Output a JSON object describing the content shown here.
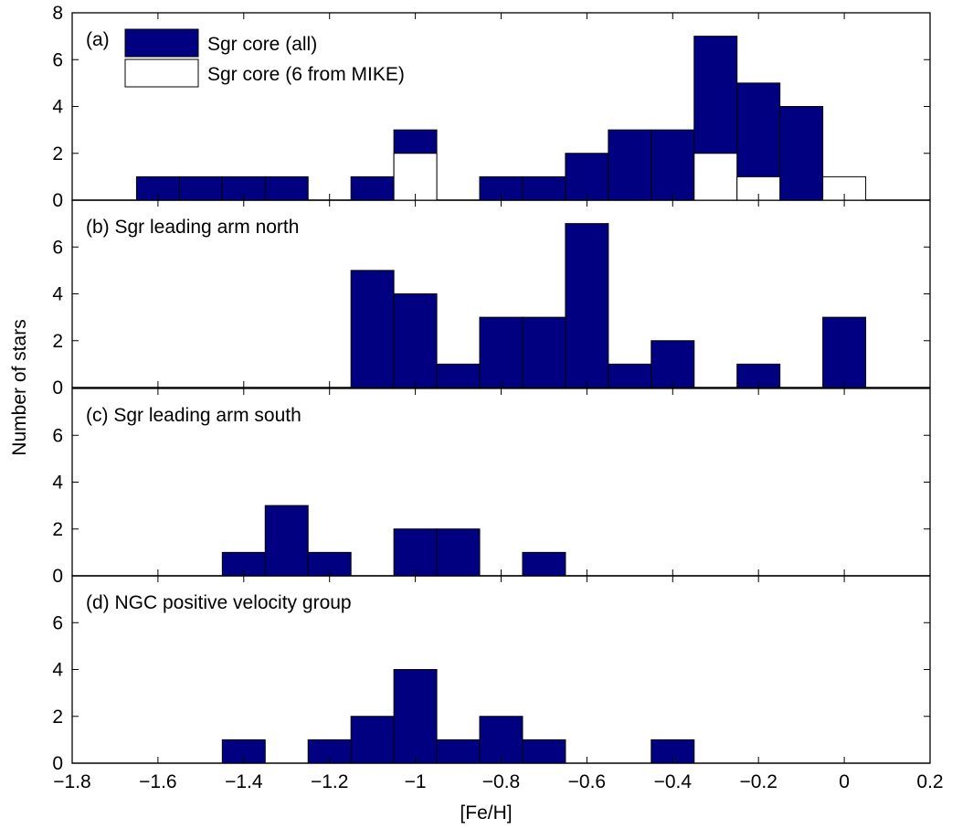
{
  "chart_data": {
    "type": "bar",
    "xlabel": "[Fe/H]",
    "ylabel": "Number of stars",
    "xlim": [
      -1.8,
      0.2
    ],
    "x_ticks": [
      -1.8,
      -1.6,
      -1.4,
      -1.2,
      -1,
      -0.8,
      -0.6,
      -0.4,
      -0.2,
      0,
      0.2
    ],
    "x_tick_labels": [
      "−1.8",
      "−1.6",
      "−1.4",
      "−1.2",
      "−1",
      "−0.8",
      "−0.6",
      "−0.4",
      "−0.2",
      "0",
      "0.2"
    ],
    "bin_width": 0.1,
    "grid": false,
    "colors": {
      "filled": "#000080",
      "open": "#ffffff",
      "edge": "#000000"
    },
    "panels": [
      {
        "label": "(a)",
        "ylim": [
          0,
          8
        ],
        "y_ticks": [
          0,
          2,
          4,
          6,
          8
        ],
        "y_tick_labels": [
          "0",
          "2",
          "4",
          "6",
          "8"
        ],
        "legend": {
          "placement": "top-left",
          "entries": [
            "Sgr core (all)",
            "Sgr core (6 from MIKE)"
          ]
        },
        "series": [
          {
            "name": "Sgr core (all)",
            "style": "filled",
            "bin_centers": [
              -1.6,
              -1.5,
              -1.4,
              -1.3,
              -1.1,
              -1.0,
              -0.8,
              -0.7,
              -0.6,
              -0.5,
              -0.4,
              -0.3,
              -0.2,
              -0.1
            ],
            "values": [
              1,
              1,
              1,
              1,
              1,
              3,
              1,
              1,
              2,
              3,
              3,
              7,
              5,
              4
            ]
          },
          {
            "name": "Sgr core (6 from MIKE)",
            "style": "open",
            "bin_centers": [
              -1.0,
              -0.3,
              -0.2,
              0.0
            ],
            "values": [
              2,
              2,
              1,
              1
            ]
          }
        ]
      },
      {
        "label": "(b) Sgr leading arm north",
        "ylim": [
          0,
          8
        ],
        "y_ticks": [
          0,
          2,
          4,
          6
        ],
        "y_tick_labels": [
          "0",
          "2",
          "4",
          "6"
        ],
        "series": [
          {
            "style": "filled",
            "bin_centers": [
              -1.1,
              -1.0,
              -0.9,
              -0.8,
              -0.7,
              -0.6,
              -0.5,
              -0.4,
              -0.2,
              0.0
            ],
            "values": [
              5,
              4,
              1,
              3,
              3,
              7,
              1,
              2,
              1,
              3
            ]
          }
        ]
      },
      {
        "label": "(c) Sgr leading arm south",
        "ylim": [
          0,
          8
        ],
        "y_ticks": [
          0,
          2,
          4,
          6
        ],
        "y_tick_labels": [
          "0",
          "2",
          "4",
          "6"
        ],
        "series": [
          {
            "style": "filled",
            "bin_centers": [
              -1.4,
              -1.3,
              -1.2,
              -1.0,
              -0.9,
              -0.7
            ],
            "values": [
              1,
              3,
              1,
              2,
              2,
              1
            ]
          }
        ]
      },
      {
        "label": "(d) NGC positive velocity group",
        "ylim": [
          0,
          8
        ],
        "y_ticks": [
          0,
          2,
          4,
          6
        ],
        "y_tick_labels": [
          "0",
          "2",
          "4",
          "6"
        ],
        "series": [
          {
            "style": "filled",
            "bin_centers": [
              -1.4,
              -1.2,
              -1.1,
              -1.0,
              -0.9,
              -0.8,
              -0.7,
              -0.4
            ],
            "values": [
              1,
              1,
              2,
              4,
              1,
              2,
              1,
              1
            ]
          }
        ]
      }
    ]
  }
}
